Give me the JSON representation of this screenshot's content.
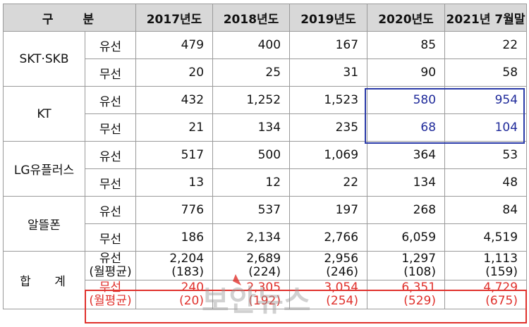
{
  "header": {
    "col0": "구 분",
    "years": [
      "2017년도",
      "2018년도",
      "2019년도",
      "2020년도",
      "2021년 7월말"
    ]
  },
  "labels": {
    "wired": "유선",
    "wireless": "무선",
    "monthly_avg": "(월평균)"
  },
  "companies": [
    {
      "name": "SKT·SKB",
      "wired": [
        "479",
        "400",
        "167",
        "85",
        "22"
      ],
      "wireless": [
        "20",
        "25",
        "31",
        "90",
        "58"
      ]
    },
    {
      "name": "KT",
      "wired": [
        "432",
        "1,252",
        "1,523",
        "580",
        "954"
      ],
      "wireless": [
        "21",
        "134",
        "235",
        "68",
        "104"
      ]
    },
    {
      "name": "LG유플러스",
      "wired": [
        "517",
        "500",
        "1,069",
        "364",
        "53"
      ],
      "wireless": [
        "13",
        "12",
        "22",
        "134",
        "48"
      ]
    },
    {
      "name": "알뜰폰",
      "wired": [
        "776",
        "537",
        "197",
        "268",
        "84"
      ],
      "wireless": [
        "186",
        "2,134",
        "2,766",
        "6,059",
        "4,519"
      ]
    }
  ],
  "total": {
    "name": "합 계",
    "wired": [
      "2,204",
      "2,689",
      "2,956",
      "1,297",
      "1,113"
    ],
    "wired_avg": [
      "(183)",
      "(224)",
      "(246)",
      "(108)",
      "(159)"
    ],
    "wireless": [
      "240",
      "2,305",
      "3,054",
      "6,351",
      "4,729"
    ],
    "wireless_avg": [
      "(20)",
      "(192)",
      "(254)",
      "(529)",
      "(675)"
    ]
  },
  "watermark": "보안뉴스",
  "colors": {
    "header_bg": "#d8d8d8",
    "highlight_blue": "#1f2a9a",
    "highlight_red": "#e0312c"
  }
}
